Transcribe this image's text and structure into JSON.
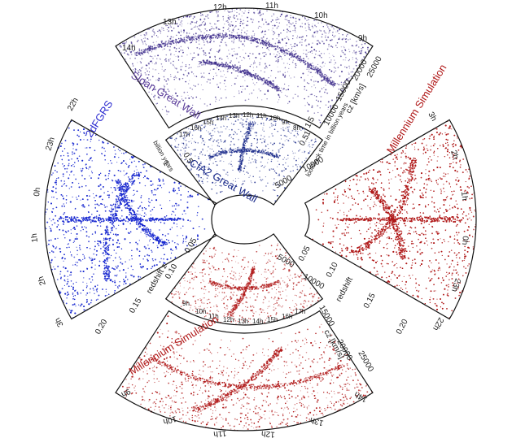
{
  "colors": {
    "sdss": "#3b2a8a",
    "cfa2": "#1a2a8a",
    "twodf": "#1a2ad0",
    "millennium": "#b01818",
    "frame": "#111111"
  },
  "top_outer": {
    "title": "Sloan Great Wall",
    "ra_ticks": [
      "14h",
      "13h",
      "12h",
      "11h",
      "10h",
      "9h"
    ],
    "cz_label": "cz [km/s]",
    "cz_ticks": [
      "10000",
      "15000",
      "20000",
      "25000"
    ]
  },
  "top_inner": {
    "title": "CfA2 Great Wall",
    "ra_ticks": [
      "17h",
      "16h",
      "15h",
      "14h",
      "13h",
      "12h",
      "11h",
      "10h",
      "9h",
      "8h"
    ],
    "cz_ticks": [
      "5000",
      "10000"
    ],
    "lookback_label": "lookback time in billion years",
    "lookback_ticks": [
      "0.5",
      "1",
      "1.5"
    ]
  },
  "left": {
    "title": "2dFGRS",
    "ra_ticks": [
      "22h",
      "23h",
      "0h",
      "1h",
      "2h",
      "3h"
    ],
    "z_label": "redshift z",
    "z_ticks": [
      "0.05",
      "0.10",
      "0.15",
      "0.20"
    ],
    "lookback_label": "billion years",
    "lookback_ticks": [
      "0.5",
      "1"
    ]
  },
  "right": {
    "title": "Millennium Simulation",
    "ra_ticks": [
      "3h",
      "2h",
      "1h",
      "0h",
      "23h",
      "22h"
    ],
    "z_label": "redshift",
    "z_ticks": [
      "0.05",
      "0.10",
      "0.15",
      "0.20"
    ]
  },
  "bottom_inner": {
    "cz_ticks": [
      "5000",
      "10000",
      "15000"
    ],
    "ra_ticks": [
      "9h",
      "10h",
      "11h",
      "12h",
      "13h",
      "14h",
      "15h",
      "16h",
      "17h"
    ]
  },
  "bottom_outer": {
    "title": "Millennium Simulation",
    "ra_ticks": [
      "9h",
      "10h",
      "11h",
      "12h",
      "13h",
      "14h"
    ],
    "cz_label": "cz [km/s]",
    "cz_ticks": [
      "20000",
      "25000"
    ]
  }
}
